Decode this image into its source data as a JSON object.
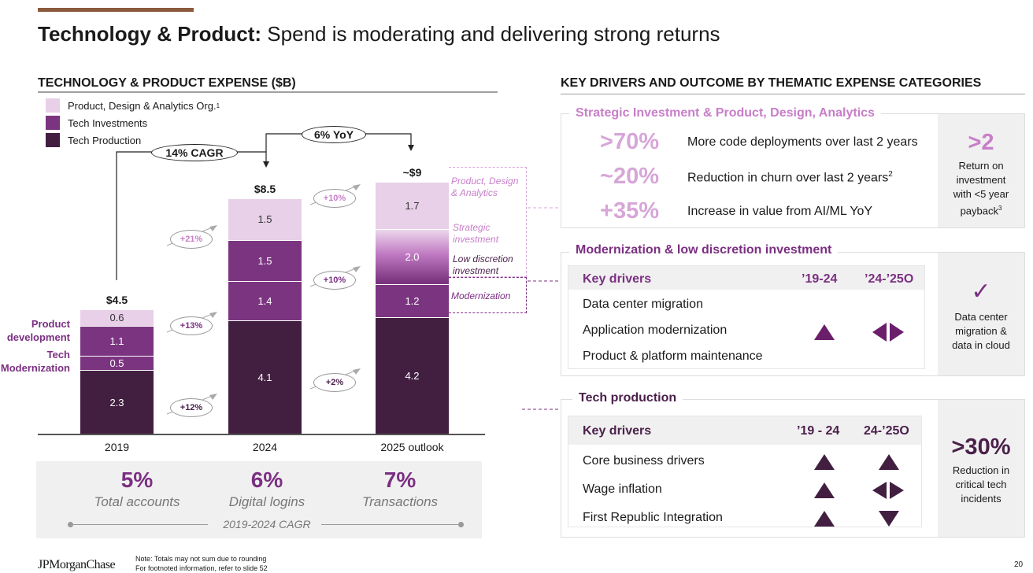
{
  "slide": {
    "title_bold": "Technology & Product:",
    "title_rest": " Spend is moderating and delivering strong returns",
    "page_number": "20",
    "brand": "JPMorganChase",
    "notes": [
      "Note: Totals may not sum due to rounding",
      "For footnoted information, refer to slide 52"
    ]
  },
  "colors": {
    "pda": "#e8d0e8",
    "tech_investments": "#7b3580",
    "tech_production": "#421f41",
    "accent_light": "#c87ec8",
    "accent": "#7b2f82",
    "accent_dark": "#4a1f4a",
    "divider": "#8b5a3c"
  },
  "chart_data": {
    "type": "bar",
    "stacked": true,
    "title": "TECHNOLOGY & PRODUCT EXPENSE ($B)",
    "categories": [
      "2019",
      "2024",
      "2025 outlook"
    ],
    "totals": [
      "$4.5",
      "$8.5",
      "~$9"
    ],
    "series": [
      {
        "name": "Tech Production",
        "values": [
          2.3,
          4.1,
          4.2
        ]
      },
      {
        "name": "Tech Investments",
        "values": [
          1.6,
          2.9,
          3.2
        ],
        "parts": [
          {
            "name": "Tech Modernization / Modernization",
            "values": [
              0.5,
              1.4,
              1.2
            ]
          },
          {
            "name": "Product development / Strategic investment",
            "values": [
              1.1,
              1.5,
              2.0
            ]
          }
        ]
      },
      {
        "name": "Product, Design & Analytics Org.",
        "values": [
          0.6,
          1.5,
          1.7
        ]
      }
    ],
    "legend": [
      {
        "label": "Product, Design & Analytics Org.",
        "sup": "1",
        "swatch": "pda"
      },
      {
        "label": "Tech Investments",
        "sup": "",
        "swatch": "tech_investments"
      },
      {
        "label": "Tech Production",
        "sup": "",
        "swatch": "tech_production"
      }
    ],
    "legend_position": "top-left",
    "callouts": {
      "cagr_2019_2024": "14% CAGR",
      "yoy_2024_2025": "6% YoY"
    },
    "growth_labels": {
      "2019_2024": {
        "pda": "+21%",
        "tech_investments": "+13%",
        "tech_production": "+12%"
      },
      "2024_2025": {
        "pda": "+10%",
        "tech_investments": "+10%",
        "tech_production": "+2%"
      }
    },
    "side_labels_2019": [
      "Product development",
      "Tech Modernization"
    ],
    "annotations_2025": [
      "Product, Design & Analytics",
      "Strategic investment",
      "Low discretion investment",
      "Modernization"
    ],
    "ylim": [
      0,
      9.5
    ]
  },
  "cagr": {
    "items": [
      {
        "value": "5%",
        "label": "Total accounts"
      },
      {
        "value": "6%",
        "label": "Digital logins"
      },
      {
        "value": "7%",
        "label": "Transactions"
      }
    ],
    "period": "2019-2024 CAGR"
  },
  "right": {
    "heading": "KEY DRIVERS AND OUTCOME BY THEMATIC EXPENSE CATEGORIES",
    "strategic": {
      "title": "Strategic Investment & Product, Design, Analytics",
      "metrics": [
        {
          "value": ">70%",
          "text": "More code deployments over last 2 years",
          "sup": ""
        },
        {
          "value": "~20%",
          "text": "Reduction in churn over last 2 years",
          "sup": "2"
        },
        {
          "value": "+35%",
          "text": "Increase in value from AI/ML YoY",
          "sup": ""
        }
      ],
      "outcome_value": ">2",
      "outcome_text": "Return on investment with <5 year payback",
      "outcome_sup": "3"
    },
    "modernization": {
      "title": "Modernization & low discretion investment",
      "headers": [
        "Key drivers",
        "’19-24",
        "’24-’25O"
      ],
      "rows": [
        "Data center migration",
        "Application modernization",
        "Product & platform maintenance"
      ],
      "trend_19_24": "up",
      "trend_24_25": "flat",
      "outcome_icon": "checkmark-icon",
      "outcome_glyph": "✓",
      "outcome_text": "Data center migration & data in cloud"
    },
    "production": {
      "title": "Tech production",
      "headers": [
        "Key drivers",
        "’19 - 24",
        "24-’25O"
      ],
      "rows": [
        {
          "label": "Core business drivers",
          "t1": "up",
          "t2": "up"
        },
        {
          "label": "Wage inflation",
          "t1": "up",
          "t2": "flat"
        },
        {
          "label": "First Republic Integration",
          "t1": "up",
          "t2": "down"
        }
      ],
      "outcome_value": ">30%",
      "outcome_text": "Reduction in critical tech incidents"
    }
  }
}
